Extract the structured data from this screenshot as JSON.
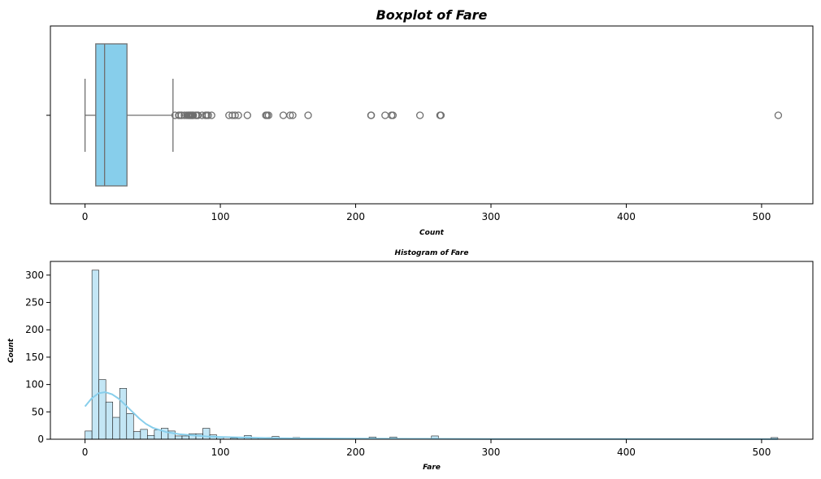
{
  "chart_data": [
    {
      "type": "boxplot",
      "title": "Boxplot of Fare",
      "xlabel": "Count",
      "ylabel": "",
      "xlim": [
        -25.6,
        537.9
      ],
      "xticks": [
        "0",
        "100",
        "200",
        "300",
        "400",
        "500"
      ],
      "box_color": "#87CEEB",
      "stats": {
        "whisker_low": 0,
        "q1": 7.91,
        "median": 14.45,
        "q3": 31.0,
        "whisker_high": 65.0
      },
      "outliers": [
        66.6,
        69.3,
        69.55,
        71.0,
        71.28,
        73.5,
        75.25,
        76.29,
        76.73,
        77.29,
        77.96,
        78.27,
        78.85,
        79.2,
        79.65,
        80.0,
        81.86,
        82.17,
        83.16,
        83.48,
        86.5,
        89.1,
        90.0,
        91.08,
        93.5,
        106.43,
        108.9,
        110.88,
        113.28,
        120.0,
        133.65,
        134.5,
        135.63,
        146.52,
        151.55,
        153.46,
        164.87,
        211.34,
        211.5,
        221.78,
        226.5,
        227.53,
        247.52,
        262.38,
        263.0,
        512.33
      ]
    },
    {
      "type": "histogram",
      "title": "Histogram of Fare",
      "xlabel": "Fare",
      "ylabel": "Count",
      "xlim": [
        -25.6,
        537.9
      ],
      "ylim": [
        0,
        325
      ],
      "xticks": [
        "0",
        "100",
        "200",
        "300",
        "400",
        "500"
      ],
      "yticks": [
        "0",
        "50",
        "100",
        "150",
        "200",
        "250",
        "300"
      ],
      "bar_color": "#87CEEB",
      "kde_color": "#87CEEB",
      "bin_width": 5.12,
      "bin_start": 0,
      "counts": [
        15,
        309,
        109,
        68,
        40,
        93,
        47,
        14,
        18,
        7,
        17,
        20,
        15,
        6,
        6,
        10,
        10,
        20,
        8,
        4,
        0,
        2,
        3,
        7,
        2,
        3,
        3,
        5,
        2,
        2,
        3,
        0,
        0,
        0,
        0,
        0,
        0,
        0,
        0,
        0,
        0,
        4,
        0,
        0,
        4,
        0,
        0,
        0,
        0,
        0,
        6,
        0,
        0,
        0,
        0,
        0,
        0,
        0,
        0,
        0,
        0,
        0,
        0,
        0,
        0,
        0,
        0,
        0,
        0,
        0,
        0,
        0,
        0,
        0,
        0,
        0,
        0,
        0,
        0,
        0,
        0,
        0,
        0,
        0,
        0,
        0,
        0,
        0,
        0,
        0,
        0,
        0,
        0,
        0,
        0,
        0,
        0,
        0,
        0,
        3
      ],
      "kde": {
        "x": [
          0,
          5,
          10,
          15,
          20,
          25,
          30,
          35,
          40,
          45,
          50,
          60,
          70,
          80,
          90,
          100,
          120,
          140,
          160,
          200,
          250,
          300,
          400,
          512
        ],
        "y": [
          60,
          75,
          84,
          86,
          82,
          74,
          62,
          50,
          38,
          28,
          21,
          13,
          9,
          7,
          5,
          4,
          3,
          2,
          1.5,
          1,
          0.8,
          0.5,
          0.3,
          0.2
        ]
      }
    }
  ]
}
